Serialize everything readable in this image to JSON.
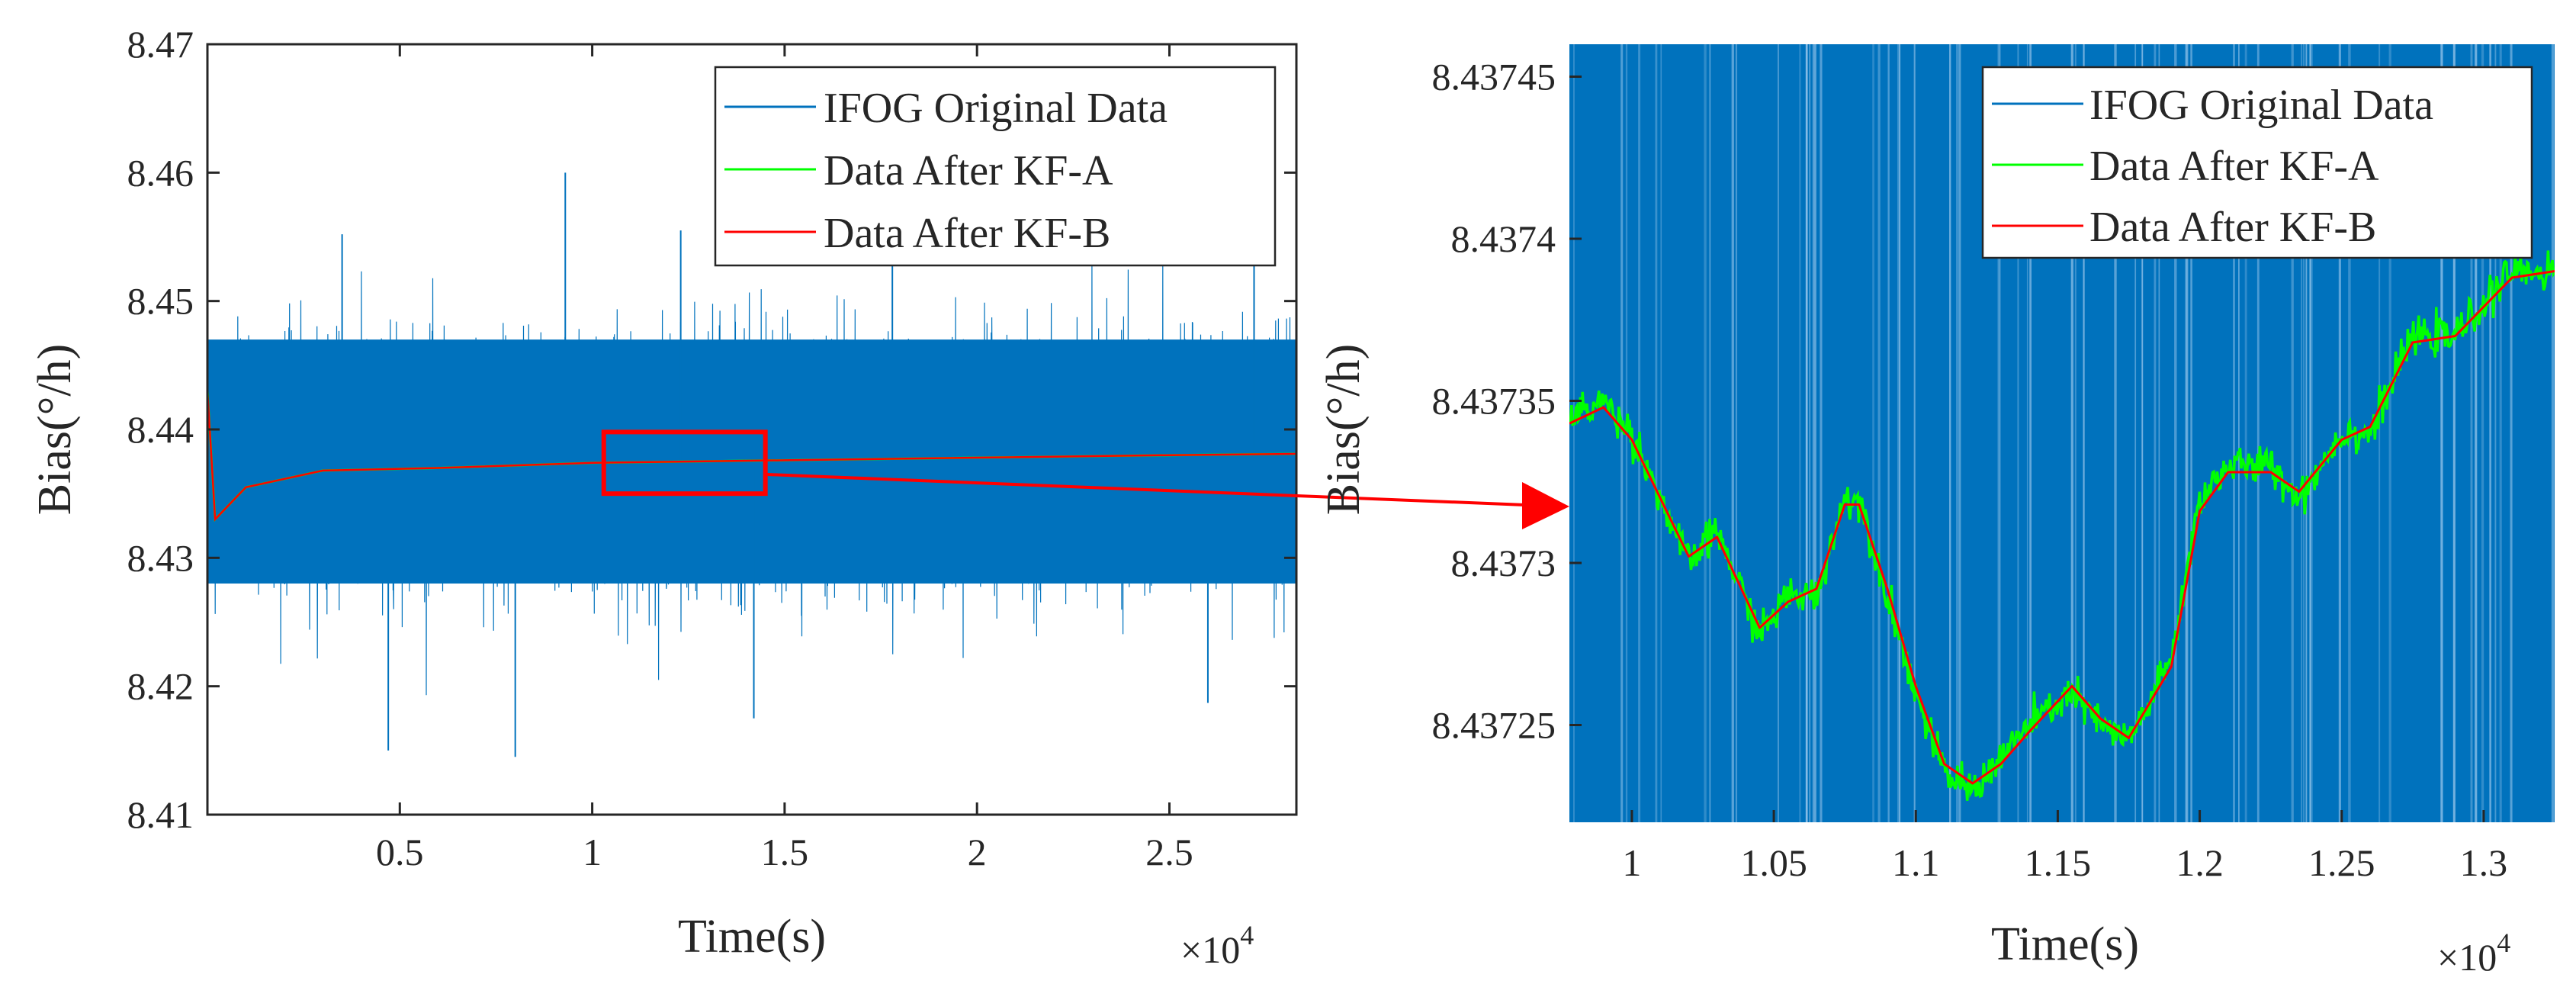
{
  "chart_data": [
    {
      "type": "line",
      "panel": "overview",
      "title": "",
      "xlabel": "Time(s)",
      "ylabel": "Bias(°/h)",
      "x_exponent_label": "×10",
      "x_exponent_power": "4",
      "xlim": [
        0,
        2.83
      ],
      "ylim": [
        8.41,
        8.47
      ],
      "xticks": [
        0.5,
        1,
        1.5,
        2,
        2.5
      ],
      "xtick_labels": [
        "0.5",
        "1",
        "1.5",
        "2",
        "2.5"
      ],
      "yticks": [
        8.41,
        8.42,
        8.43,
        8.44,
        8.45,
        8.46,
        8.47
      ],
      "ytick_labels": [
        "8.41",
        "8.42",
        "8.43",
        "8.44",
        "8.45",
        "8.46",
        "8.47"
      ],
      "legend_position": "top-right",
      "series": [
        {
          "name": "IFOG Original Data",
          "color": "#0072BD",
          "mean": 8.4375,
          "core_band": [
            8.428,
            8.447
          ],
          "extremes": [
            8.4145,
            8.46
          ]
        },
        {
          "name": "Data After KF-A",
          "color": "#00FF00",
          "x": [
            0,
            0.02,
            0.1,
            0.3,
            0.6,
            1.0,
            1.5,
            2.0,
            2.5,
            2.83
          ],
          "values": [
            8.443,
            8.433,
            8.4355,
            8.4368,
            8.437,
            8.4374,
            8.4376,
            8.4378,
            8.438,
            8.4381
          ]
        },
        {
          "name": "Data After KF-B",
          "color": "#FF0000",
          "x": [
            0,
            0.02,
            0.1,
            0.3,
            0.6,
            1.0,
            1.5,
            2.0,
            2.5,
            2.83
          ],
          "values": [
            8.443,
            8.433,
            8.4355,
            8.4368,
            8.437,
            8.4374,
            8.4376,
            8.4378,
            8.438,
            8.4381
          ]
        }
      ],
      "zoom_box": {
        "x_range": [
          1.03,
          1.45
        ],
        "y_range": [
          8.435,
          8.4398
        ]
      }
    },
    {
      "type": "line",
      "panel": "zoomed",
      "title": "",
      "xlabel": "Time(s)",
      "ylabel": "Bias(°/h)",
      "x_exponent_label": "×10",
      "x_exponent_power": "4",
      "xlim": [
        0.978,
        1.325
      ],
      "ylim": [
        8.43722,
        8.43746
      ],
      "xticks": [
        1.0,
        1.05,
        1.1,
        1.15,
        1.2,
        1.25,
        1.3
      ],
      "xtick_labels": [
        "1",
        "1.05",
        "1.1",
        "1.15",
        "1.2",
        "1.25",
        "1.3"
      ],
      "yticks": [
        8.43725,
        8.4373,
        8.43735,
        8.4374,
        8.43745
      ],
      "ytick_labels": [
        "8.43725",
        "8.4373",
        "8.43735",
        "8.4374",
        "8.43745"
      ],
      "legend_position": "top-right",
      "series": [
        {
          "name": "IFOG Original Data",
          "color": "#0072BD",
          "note": "fills entire visible range"
        },
        {
          "name": "Data After KF-A",
          "color": "#00FF00",
          "x": [
            0.978,
            0.99,
            1.0,
            1.02,
            1.03,
            1.045,
            1.055,
            1.065,
            1.075,
            1.08,
            1.09,
            1.1,
            1.11,
            1.12,
            1.13,
            1.14,
            1.155,
            1.165,
            1.175,
            1.19,
            1.2,
            1.21,
            1.225,
            1.235,
            1.25,
            1.26,
            1.275,
            1.29,
            1.31,
            1.325
          ],
          "values": [
            8.437345,
            8.43735,
            8.43734,
            8.4373,
            8.43731,
            8.437278,
            8.43729,
            8.43729,
            8.43732,
            8.43732,
            8.43729,
            8.43726,
            8.437235,
            8.43723,
            8.43724,
            8.43725,
            8.43726,
            8.43725,
            8.437245,
            8.43727,
            8.43732,
            8.43733,
            8.43733,
            8.43732,
            8.43734,
            8.43734,
            8.43737,
            8.43737,
            8.43739,
            8.43739
          ]
        },
        {
          "name": "Data After KF-B",
          "color": "#FF0000",
          "x": [
            0.978,
            0.99,
            1.0,
            1.02,
            1.03,
            1.045,
            1.055,
            1.065,
            1.075,
            1.08,
            1.09,
            1.1,
            1.11,
            1.12,
            1.13,
            1.14,
            1.155,
            1.165,
            1.175,
            1.19,
            1.2,
            1.21,
            1.225,
            1.235,
            1.25,
            1.26,
            1.275,
            1.29,
            1.31,
            1.325
          ],
          "values": [
            8.437343,
            8.437348,
            8.437338,
            8.437302,
            8.437308,
            8.43728,
            8.437288,
            8.437292,
            8.437318,
            8.437318,
            8.437292,
            8.437262,
            8.437238,
            8.437232,
            8.437238,
            8.437248,
            8.437262,
            8.437252,
            8.437246,
            8.437268,
            8.437316,
            8.437328,
            8.437328,
            8.437322,
            8.437338,
            8.437342,
            8.437368,
            8.43737,
            8.437388,
            8.43739
          ]
        }
      ]
    }
  ],
  "colors": {
    "original": "#0072BD",
    "kf_a": "#00FF00",
    "kf_b": "#FF0000",
    "zoom_box": "#FF0000",
    "axis": "#262626"
  }
}
